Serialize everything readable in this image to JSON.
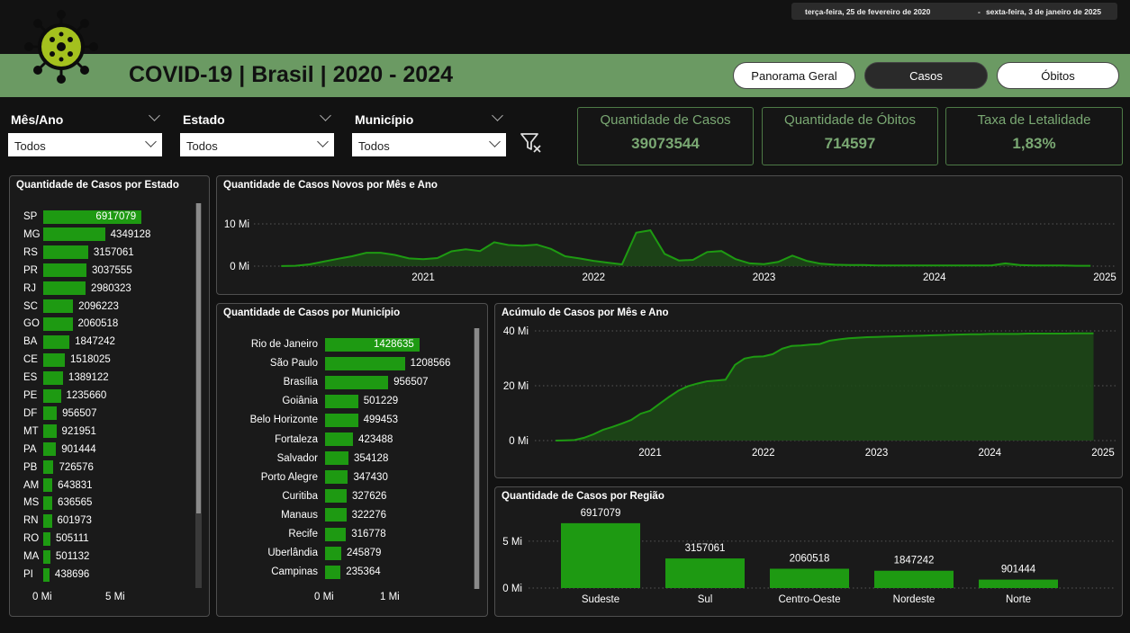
{
  "header": {
    "title": "COVID-19 | Brasil | 2020 - 2024",
    "date_start": "terça-feira, 25 de fevereiro de 2020",
    "date_sep": "-",
    "date_end": "sexta-feira, 3 de janeiro de 2025",
    "nav": [
      {
        "label": "Panorama Geral"
      },
      {
        "label": "Casos"
      },
      {
        "label": "Óbitos"
      }
    ]
  },
  "filters": [
    {
      "label": "Mês/Ano",
      "value": "Todos"
    },
    {
      "label": "Estado",
      "value": "Todos"
    },
    {
      "label": "Município",
      "value": "Todos"
    }
  ],
  "kpis": [
    {
      "title": "Quantidade de Casos",
      "value": "39073544"
    },
    {
      "title": "Quantidade de Óbitos",
      "value": "714597"
    },
    {
      "title": "Taxa de Letalidade",
      "value": "1,83%"
    }
  ],
  "colors": {
    "accent": "#1e9a12",
    "banner": "#6b9a63",
    "kpi_text": "#7aa873"
  },
  "chart_data": [
    {
      "id": "estado",
      "type": "bar",
      "orientation": "horizontal",
      "title": "Quantidade de Casos por Estado",
      "categories": [
        "SP",
        "MG",
        "RS",
        "PR",
        "RJ",
        "SC",
        "GO",
        "BA",
        "CE",
        "ES",
        "PE",
        "DF",
        "MT",
        "PA",
        "PB",
        "AM",
        "MS",
        "RN",
        "RO",
        "MA",
        "PI"
      ],
      "values": [
        6917079,
        4349128,
        3157061,
        3037555,
        2980323,
        2096223,
        2060518,
        1847242,
        1518025,
        1389122,
        1235660,
        956507,
        921951,
        901444,
        726576,
        643831,
        636565,
        601973,
        505111,
        501132,
        438696
      ],
      "xticks": [
        "0 Mi",
        "5 Mi"
      ],
      "xlim": [
        0,
        7600000
      ]
    },
    {
      "id": "novos",
      "type": "area",
      "title": "Quantidade de Casos Novos por Mês e Ano",
      "x": [
        "2020-03",
        "2020-04",
        "2020-05",
        "2020-06",
        "2020-07",
        "2020-08",
        "2020-09",
        "2020-10",
        "2020-11",
        "2020-12",
        "2021-01",
        "2021-02",
        "2021-03",
        "2021-04",
        "2021-05",
        "2021-06",
        "2021-07",
        "2021-08",
        "2021-09",
        "2021-10",
        "2021-11",
        "2021-12",
        "2022-01",
        "2022-02",
        "2022-03",
        "2022-04",
        "2022-05",
        "2022-06",
        "2022-07",
        "2022-08",
        "2022-09",
        "2022-10",
        "2022-11",
        "2022-12",
        "2023-01",
        "2023-02",
        "2023-03",
        "2023-04",
        "2023-05",
        "2023-06",
        "2023-07",
        "2023-08",
        "2023-09",
        "2023-10",
        "2023-11",
        "2023-12",
        "2024-01",
        "2024-02",
        "2024-03",
        "2024-04",
        "2024-05",
        "2024-06",
        "2024-07",
        "2024-08",
        "2024-09",
        "2024-10",
        "2024-11",
        "2024-12"
      ],
      "values": [
        0.02,
        0.1,
        0.5,
        1.3,
        2.1,
        2.8,
        3.8,
        3.8,
        3.2,
        2.2,
        2.0,
        2.3,
        4.2,
        4.8,
        4.3,
        6.8,
        6.0,
        5.8,
        6.1,
        4.9,
        2.8,
        2.2,
        1.5,
        1.0,
        0.5,
        9.5,
        10.2,
        3.5,
        1.6,
        1.8,
        4.0,
        4.3,
        2.0,
        0.8,
        0.6,
        1.2,
        3.0,
        1.5,
        0.7,
        0.4,
        0.3,
        0.3,
        0.2,
        0.2,
        0.2,
        0.2,
        0.2,
        0.2,
        0.2,
        0.2,
        0.2,
        0.8,
        0.3,
        0.2,
        0.2,
        0.2,
        0.1,
        0.1
      ],
      "unit": "Mi",
      "yticks": [
        "0 Mi",
        "10 Mi"
      ],
      "ylim": [
        0,
        12
      ],
      "xticks": [
        "2021",
        "2022",
        "2023",
        "2024",
        "2025"
      ]
    },
    {
      "id": "municipio",
      "type": "bar",
      "orientation": "horizontal",
      "title": "Quantidade de Casos por Município",
      "categories": [
        "Rio de Janeiro",
        "São Paulo",
        "Brasília",
        "Goiânia",
        "Belo Horizonte",
        "Fortaleza",
        "Salvador",
        "Porto Alegre",
        "Curitiba",
        "Manaus",
        "Recife",
        "Uberlândia",
        "Campinas"
      ],
      "values": [
        1428635,
        1208566,
        956507,
        501229,
        499453,
        423488,
        354128,
        347430,
        327626,
        322276,
        316778,
        245879,
        235364
      ],
      "xticks": [
        "0 Mi",
        "1 Mi"
      ],
      "xlim": [
        0,
        1800000
      ]
    },
    {
      "id": "acumulo",
      "type": "area",
      "title": "Acúmulo de Casos por Mês e Ano",
      "x": [
        "2020-03",
        "2020-04",
        "2020-05",
        "2020-06",
        "2020-07",
        "2020-08",
        "2020-09",
        "2020-10",
        "2020-11",
        "2020-12",
        "2021-01",
        "2021-02",
        "2021-03",
        "2021-04",
        "2021-05",
        "2021-06",
        "2021-07",
        "2021-08",
        "2021-09",
        "2021-10",
        "2021-11",
        "2021-12",
        "2022-01",
        "2022-02",
        "2022-03",
        "2022-04",
        "2022-05",
        "2022-06",
        "2022-07",
        "2022-08",
        "2022-09",
        "2022-10",
        "2022-11",
        "2022-12",
        "2023-01",
        "2023-02",
        "2023-03",
        "2023-04",
        "2023-05",
        "2023-06",
        "2023-07",
        "2023-08",
        "2023-09",
        "2023-10",
        "2023-11",
        "2023-12",
        "2024-01",
        "2024-02",
        "2024-03",
        "2024-04",
        "2024-05",
        "2024-06",
        "2024-07",
        "2024-08",
        "2024-09",
        "2024-10",
        "2024-11",
        "2024-12"
      ],
      "values": [
        0.0,
        0.1,
        0.2,
        1.0,
        2.3,
        3.9,
        5.0,
        6.2,
        7.5,
        9.8,
        10.9,
        13.4,
        15.9,
        18.2,
        19.8,
        20.8,
        21.6,
        21.9,
        22.2,
        27.6,
        29.9,
        30.6,
        30.7,
        31.5,
        33.5,
        34.5,
        34.7,
        35.0,
        35.2,
        36.4,
        36.9,
        37.3,
        37.5,
        37.7,
        37.8,
        37.9,
        38.0,
        38.1,
        38.2,
        38.3,
        38.4,
        38.5,
        38.6,
        38.7,
        38.8,
        38.8,
        38.9,
        38.9,
        38.9,
        38.9,
        39.0,
        39.0,
        39.0,
        39.0,
        39.0,
        39.1,
        39.1,
        39.1
      ],
      "unit": "Mi",
      "yticks": [
        "0 Mi",
        "20 Mi",
        "40 Mi"
      ],
      "ylim": [
        0,
        40
      ],
      "xticks": [
        "2021",
        "2022",
        "2023",
        "2024",
        "2025"
      ]
    },
    {
      "id": "regiao",
      "type": "bar",
      "title": "Quantidade de Casos por Região",
      "categories": [
        "Sudeste",
        "Sul",
        "Centro-Oeste",
        "Nordeste",
        "Norte"
      ],
      "values": [
        6917079,
        3157061,
        2060518,
        1847242,
        901444
      ],
      "yticks": [
        "0 Mi",
        "5 Mi"
      ],
      "ylim": [
        0,
        7000000
      ]
    }
  ]
}
